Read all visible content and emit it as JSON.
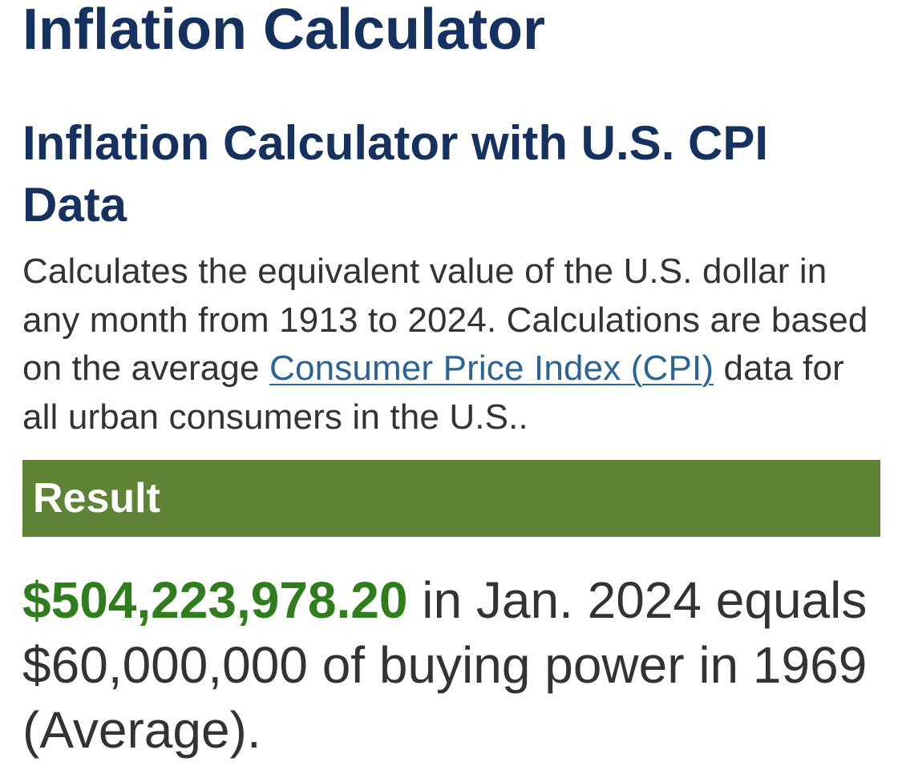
{
  "page": {
    "title": "Inflation Calculator"
  },
  "calculator": {
    "heading": "Inflation Calculator with U.S. CPI Data",
    "description_before_link": "Calculates the equivalent value of the U.S. dollar in any month from 1913 to 2024. Calculations are based on the average ",
    "cpi_link_text": "Consumer Price Index (CPI)",
    "description_after_link": " data for all urban consumers in the U.S.."
  },
  "result": {
    "heading": "Result",
    "amount": "$504,223,978.20",
    "statement": " in Jan. 2024 equals $60,000,000 of buying power in 1969 (Average)."
  },
  "colors": {
    "heading_navy": "#14315f",
    "result_bar_green": "#5e8335",
    "amount_green": "#2f7d1d",
    "link_blue": "#2a6496",
    "body_text": "#333333"
  }
}
